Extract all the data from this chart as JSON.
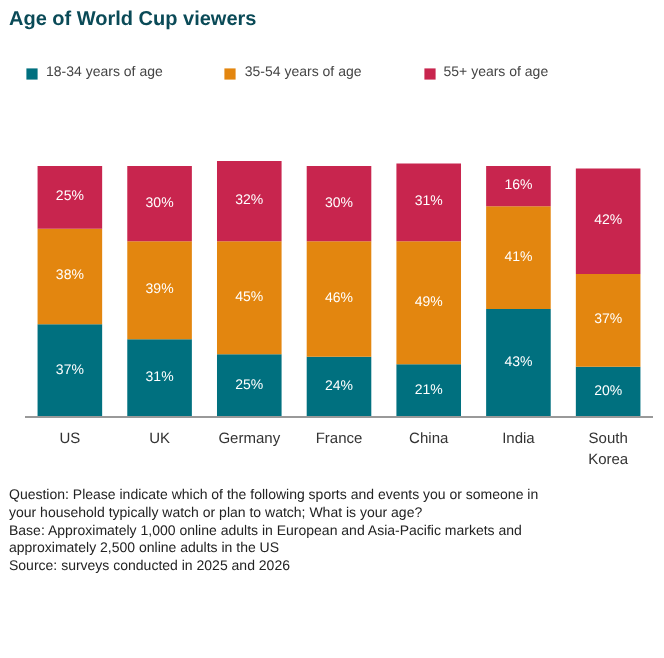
{
  "chart_data": {
    "type": "bar",
    "title": "Age of World Cup viewers",
    "stacked": true,
    "legend": "top",
    "grid": false,
    "categories": [
      "US",
      "UK",
      "Germany",
      "France",
      "China",
      "India",
      "South Korea"
    ],
    "series": [
      {
        "name": "18-34 years of age",
        "color": "#00707f",
        "values": [
          37,
          31,
          25,
          24,
          21,
          43,
          20
        ],
        "value_labels": [
          "37%",
          "31%",
          "25%",
          "24%",
          "21%",
          "43%",
          "20%"
        ]
      },
      {
        "name": "35-54 years of age",
        "color": "#e3860f",
        "values": [
          38,
          39,
          45,
          46,
          49,
          41,
          37
        ],
        "value_labels": [
          "38%",
          "39%",
          "45%",
          "46%",
          "49%",
          "41%",
          "37%"
        ]
      },
      {
        "name": "55+ years of age",
        "color": "#c8254e",
        "values": [
          25,
          30,
          32,
          30,
          31,
          16,
          42
        ],
        "value_labels": [
          "25%",
          "30%",
          "32%",
          "30%",
          "31%",
          "16%",
          "42%"
        ]
      }
    ],
    "annotations": [
      "Question: Please indicate which of the following sports and events you or someone in your household typically watch or plan to watch; What is your age?",
      "Base: Approximately 1,000 online adults in European and Asia-Pacific markets and approximately 2,500 online adults in the US",
      "Source: surveys conducted in 2025 and 2026"
    ]
  }
}
